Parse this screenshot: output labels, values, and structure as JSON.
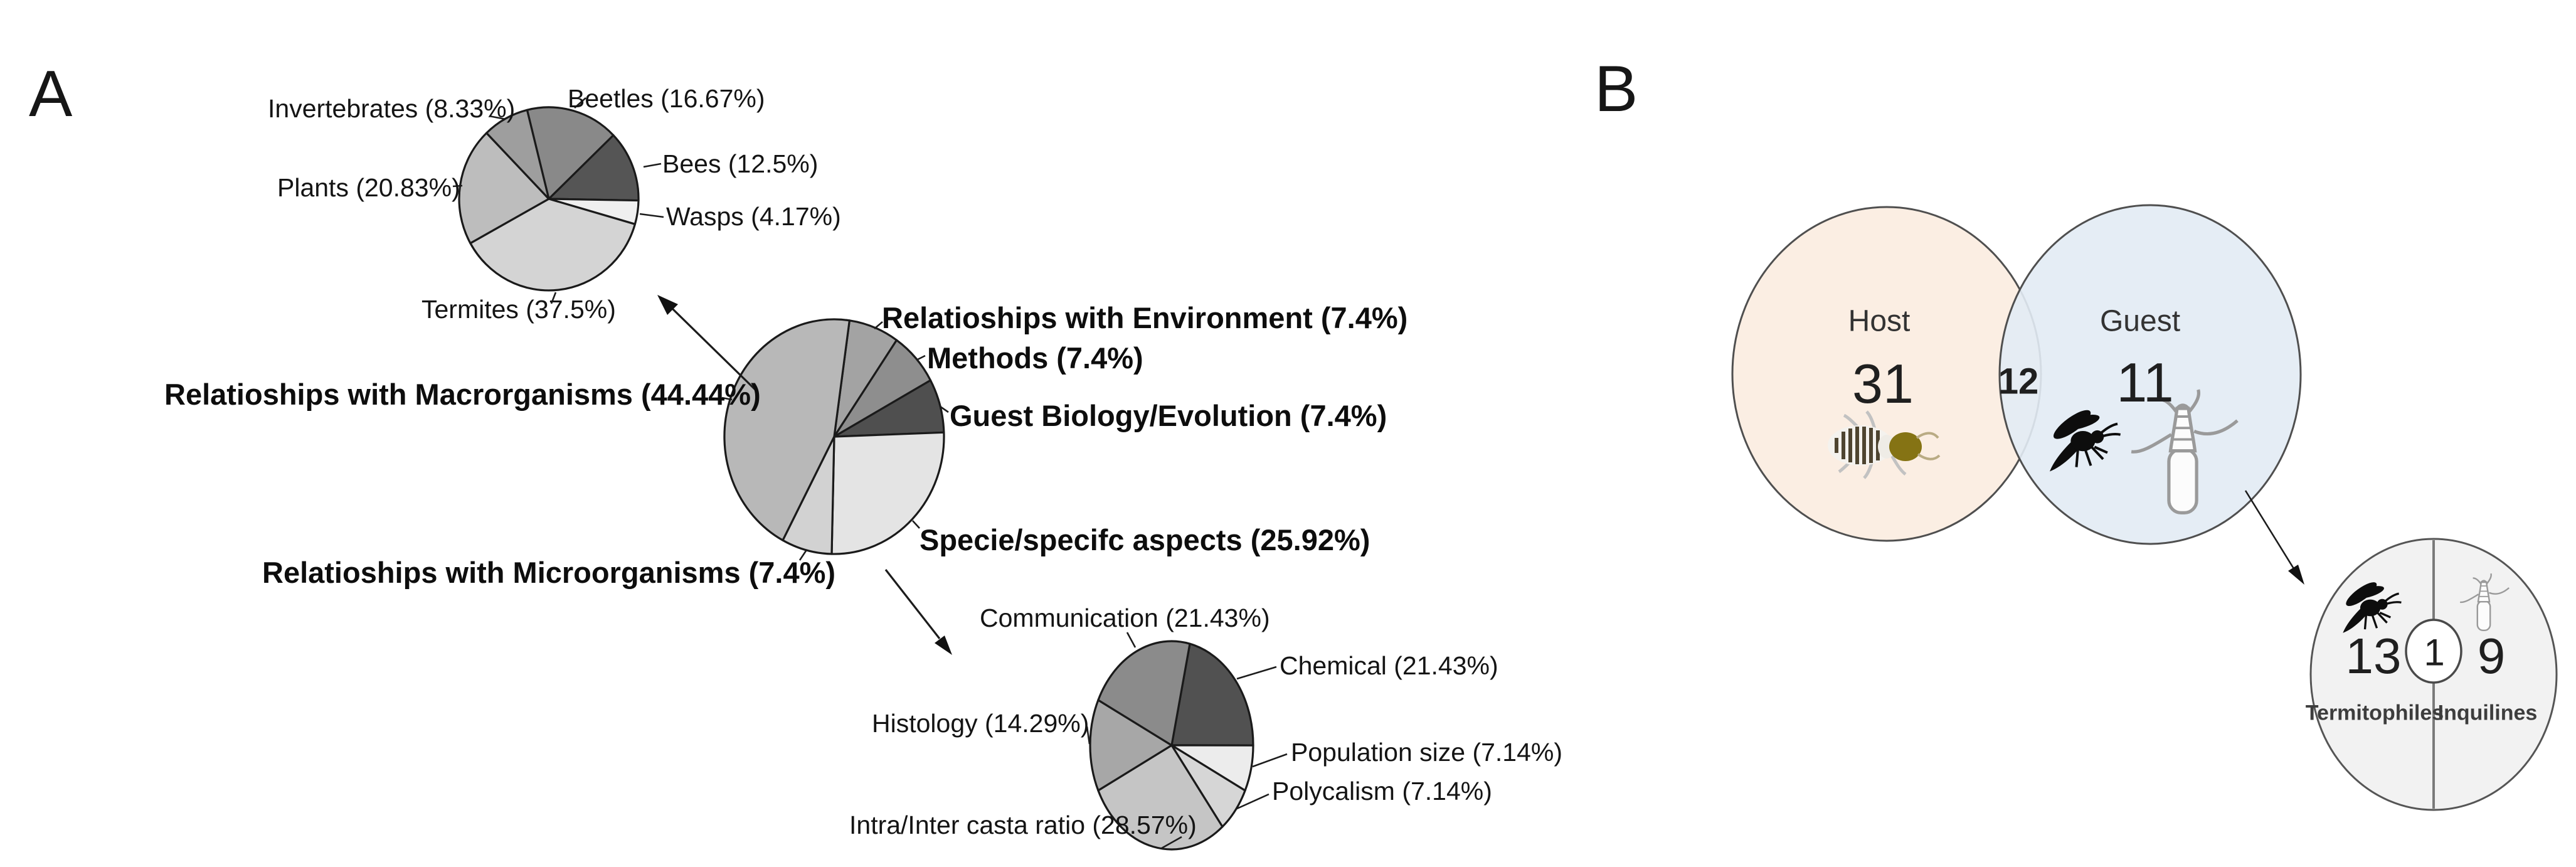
{
  "panels": {
    "a_label": "A",
    "b_label": "B"
  },
  "icons": {
    "termite": "termite-icon",
    "fly": "fly-icon",
    "rove_beetle": "rove-beetle-icon"
  },
  "chart_data": [
    {
      "id": "pie-macroorganism-hosts",
      "type": "pie",
      "rotation_deg": -14,
      "legend": "none",
      "slices": [
        {
          "key": "beetles",
          "label": "Beetles (16.67%)",
          "value": 16.67,
          "color": "#898989"
        },
        {
          "key": "bees",
          "label": "Bees (12.5%)",
          "value": 12.5,
          "color": "#555555"
        },
        {
          "key": "wasps",
          "label": "Wasps (4.17%)",
          "value": 4.17,
          "color": "#efefef"
        },
        {
          "key": "termites",
          "label": "Termites (37.5%)",
          "value": 37.5,
          "color": "#d4d4d4"
        },
        {
          "key": "plants",
          "label": "Plants (20.83%)",
          "value": 20.83,
          "color": "#bdbdbd"
        },
        {
          "key": "invertebrates",
          "label": "Invertebrates (8.33%)",
          "value": 8.33,
          "color": "#9e9e9e"
        }
      ]
    },
    {
      "id": "pie-research-themes",
      "type": "pie",
      "rotation_deg": 8,
      "legend": "none",
      "slices": [
        {
          "key": "environment",
          "label": "Relatioships with Environment (7.4%)",
          "value": 7.4,
          "color": "#a3a3a3"
        },
        {
          "key": "methods",
          "label": "Methods (7.4%)",
          "value": 7.4,
          "color": "#8e8e8e"
        },
        {
          "key": "guest-biology",
          "label": "Guest Biology/Evolution (7.4%)",
          "value": 7.4,
          "color": "#4f4f4f"
        },
        {
          "key": "species-aspects",
          "label": "Specie/specifc aspects (25.92%)",
          "value": 25.92,
          "color": "#e4e4e4"
        },
        {
          "key": "microorganisms",
          "label": "Relatioships with Microorganisms (7.4%)",
          "value": 7.4,
          "color": "#d2d2d2"
        },
        {
          "key": "macroorganisms",
          "label": "Relatioships with Macrorganisms (44.44%)",
          "value": 44.44,
          "color": "#b8b8b8"
        }
      ]
    },
    {
      "id": "pie-termite-specific-topics",
      "type": "pie",
      "rotation_deg": 12.9,
      "legend": "none",
      "slices": [
        {
          "key": "chemical",
          "label": "Chemical (21.43%)",
          "value": 21.43,
          "color": "#515151"
        },
        {
          "key": "population-size",
          "label": "Population size (7.14%)",
          "value": 7.14,
          "color": "#ececec"
        },
        {
          "key": "polycalism",
          "label": "Polycalism (7.14%)",
          "value": 7.14,
          "color": "#d6d6d6"
        },
        {
          "key": "intra-inter-casta-ratio",
          "label": "Intra/Inter casta ratio (28.57%)",
          "value": 28.57,
          "color": "#c5c5c5"
        },
        {
          "key": "histology",
          "label": "Histology (14.29%)",
          "value": 14.29,
          "color": "#a7a7a7"
        },
        {
          "key": "communication",
          "label": "Communication (21.43%)",
          "value": 21.43,
          "color": "#8b8b8b"
        }
      ]
    },
    {
      "id": "venn-host-guest",
      "type": "venn",
      "sets": [
        {
          "label": "Host",
          "count": "31",
          "color": "#fbeee3"
        },
        {
          "label": "Guest",
          "count": "11",
          "color": "#e2ebf4"
        }
      ],
      "intersection_count": "12",
      "detail_circle": {
        "color": "#f2f2f2",
        "left": {
          "count": "13",
          "label": "Termitophiles"
        },
        "center_count": "1",
        "right": {
          "count": "9",
          "label": "Inquilines"
        }
      }
    }
  ]
}
